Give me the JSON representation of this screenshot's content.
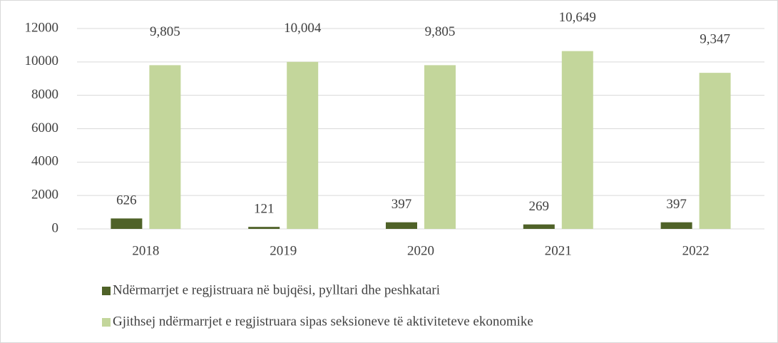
{
  "chart_data": {
    "type": "bar",
    "categories": [
      "2018",
      "2019",
      "2020",
      "2021",
      "2022"
    ],
    "series": [
      {
        "name": "Ndërmarrjet e regjistruara në bujqësi, pylltari dhe peshkatari",
        "color": "#4f6228",
        "values": [
          626,
          121,
          397,
          269,
          397
        ]
      },
      {
        "name": "Gjithsej ndërmarrjet e regjistruara sipas seksioneve të aktiviteteve ekonomike",
        "color": "#c3d69b",
        "values": [
          9805,
          10004,
          9805,
          10649,
          9347
        ],
        "value_labels": [
          "9,805",
          "10,004",
          "9,805",
          "10,649",
          "9,347"
        ]
      }
    ],
    "ylim": [
      0,
      12000
    ],
    "yticks": [
      0,
      2000,
      4000,
      6000,
      8000,
      10000,
      12000
    ],
    "grid": true,
    "legend": "bottom"
  }
}
